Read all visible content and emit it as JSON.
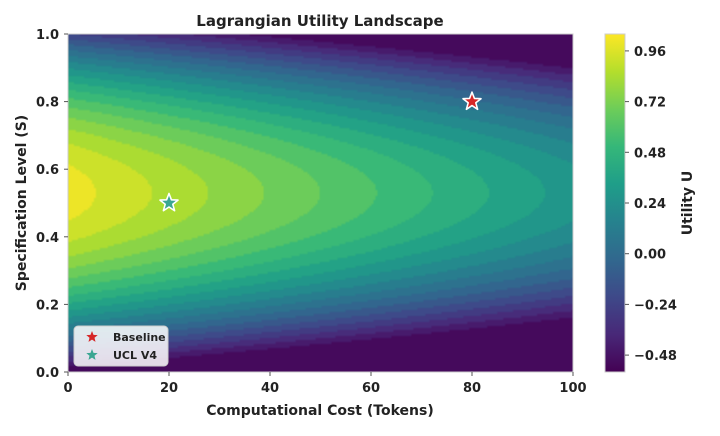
{
  "chart_data": {
    "type": "heatmap",
    "subtype": "filled-contour",
    "title": "Lagrangian Utility Landscape",
    "xlabel": "Computational Cost (Tokens)",
    "ylabel": "Specification Level (S)",
    "xlim": [
      0,
      100
    ],
    "ylim": [
      0.0,
      1.0
    ],
    "x_ticks": [
      "0",
      "20",
      "40",
      "60",
      "80",
      "100"
    ],
    "y_ticks": [
      "0.0",
      "0.2",
      "0.4",
      "0.6",
      "0.8",
      "1.0"
    ],
    "grid": false,
    "colormap": "viridis",
    "colorbar": {
      "label": "Utility U",
      "range": [
        -0.56,
        1.04
      ],
      "ticks": [
        "0.96",
        "0.72",
        "0.48",
        "0.24",
        "0.00",
        "−0.24",
        "−0.48"
      ]
    },
    "points": [
      {
        "name": "Baseline",
        "x": 80,
        "y": 0.8,
        "marker": "star",
        "color": "#d62728"
      },
      {
        "name": "UCL V4",
        "x": 20,
        "y": 0.5,
        "marker": "star",
        "color": "#3aa692"
      }
    ],
    "legend": {
      "placement": "bottom-left",
      "entries": [
        "Baseline",
        "UCL V4"
      ]
    }
  }
}
